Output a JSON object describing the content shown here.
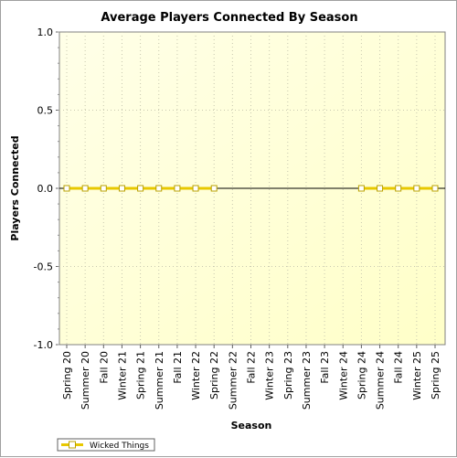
{
  "chart_data": {
    "type": "line",
    "title": "Average Players Connected By Season",
    "xlabel": "Season",
    "ylabel": "Players Connected",
    "ylim": [
      -1.0,
      1.0
    ],
    "yticks": [
      "1.0",
      "0.5",
      "0.0",
      "-0.5",
      "-1.0"
    ],
    "ytick_values": [
      1.0,
      0.5,
      0.0,
      -0.5,
      -1.0
    ],
    "categories": [
      "Spring 20",
      "Summer 20",
      "Fall 20",
      "Winter 21",
      "Spring 21",
      "Summer 21",
      "Fall 21",
      "Winter 22",
      "Spring 22",
      "Summer 22",
      "Fall 22",
      "Winter 23",
      "Spring 23",
      "Summer 23",
      "Fall 23",
      "Winter 24",
      "Spring 24",
      "Summer 24",
      "Fall 24",
      "Winter 25",
      "Spring 25"
    ],
    "series": [
      {
        "name": "Wicked Things",
        "values": [
          0,
          0,
          0,
          0,
          0,
          0,
          0,
          0,
          0,
          null,
          null,
          null,
          null,
          null,
          null,
          null,
          0,
          0,
          0,
          0,
          0
        ],
        "color": "#e8c800",
        "marker_fill": "#ffffff"
      }
    ],
    "grid": true,
    "legend": "bottom-left",
    "plot_background_top": "#ffffe8",
    "plot_background_bottom": "#ffffc8"
  }
}
